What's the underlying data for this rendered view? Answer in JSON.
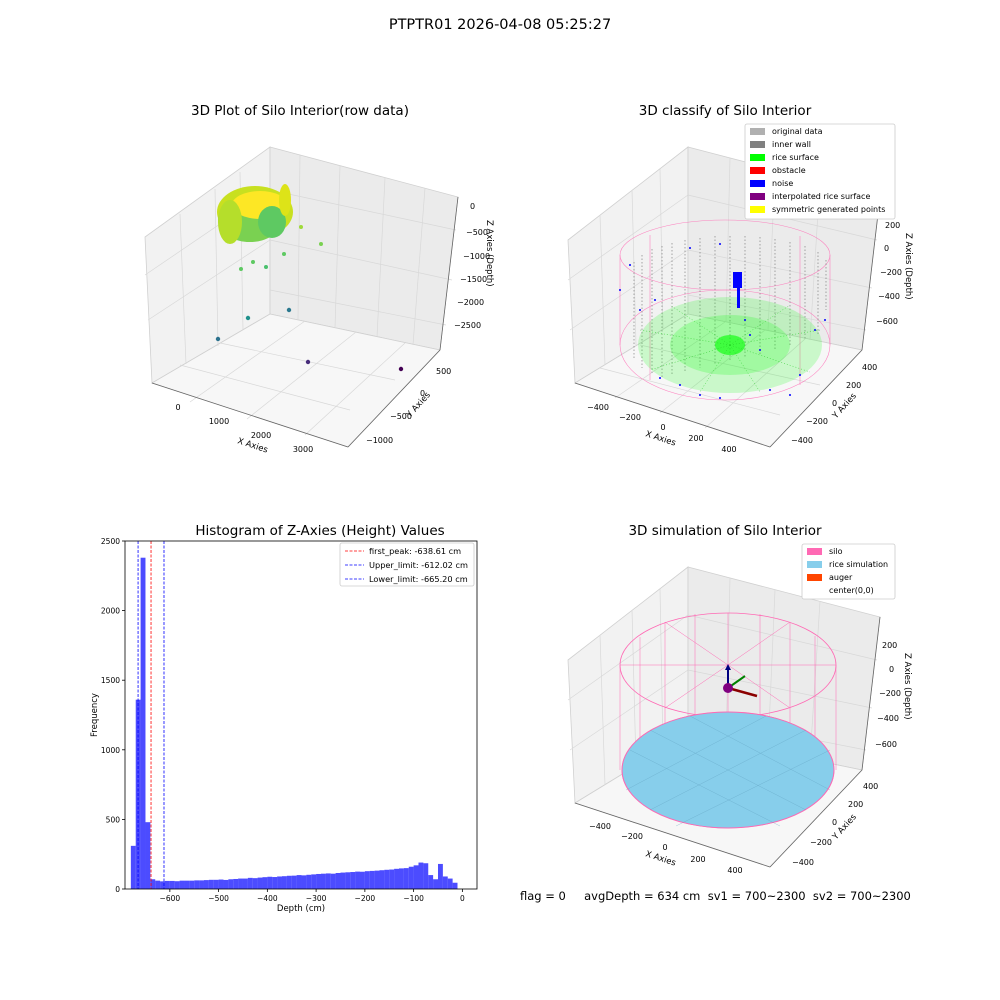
{
  "suptitle": "PTPTR01 2026-04-08 05:25:27",
  "status_text": "flag = 0     avgDepth = 634 cm  sv1 = 700~2300  sv2 = 700~2300",
  "plots": {
    "raw": {
      "title": "3D Plot of Silo Interior(row data)",
      "xlabel": "X Axies",
      "ylabel": "Y Axies",
      "zlabel": "Z Axies (Depth)",
      "xticks": [
        "0",
        "1000",
        "2000",
        "3000"
      ],
      "yticks": [
        "500",
        "0",
        "−500",
        "−1000"
      ],
      "zticks": [
        "0",
        "−500",
        "−1000",
        "−1500",
        "−2000",
        "−2500"
      ]
    },
    "classify": {
      "title": "3D classify of Silo Interior",
      "xlabel": "X Axies",
      "ylabel": "Y Axies",
      "zlabel": "Z Axies (Depth)",
      "xticks": [
        "−400",
        "−200",
        "0",
        "200",
        "400"
      ],
      "yticks": [
        "400",
        "200",
        "0",
        "−200",
        "−400"
      ],
      "zticks": [
        "200",
        "0",
        "−200",
        "−400",
        "−600"
      ],
      "legend": [
        {
          "label": "original data",
          "color": "#b0b0b0"
        },
        {
          "label": "inner wall",
          "color": "#808080"
        },
        {
          "label": "rice surface",
          "color": "#00ff00"
        },
        {
          "label": "obstacle",
          "color": "#ff0000"
        },
        {
          "label": "noise",
          "color": "#0000ff"
        },
        {
          "label": "interpolated rice surface",
          "color": "#800080"
        },
        {
          "label": "symmetric generated points",
          "color": "#ffff00"
        }
      ]
    },
    "simulation": {
      "title": "3D simulation of Silo Interior",
      "xlabel": "X Axies",
      "ylabel": "Y Axies",
      "zlabel": "Z Axies (Depth)",
      "xticks": [
        "−400",
        "−200",
        "0",
        "200",
        "400"
      ],
      "yticks": [
        "400",
        "200",
        "0",
        "−200",
        "−400"
      ],
      "zticks": [
        "200",
        "0",
        "−200",
        "−400",
        "−600"
      ],
      "legend": [
        {
          "label": "silo",
          "color": "#ff69b4"
        },
        {
          "label": "rice simulation",
          "color": "#87ceeb"
        },
        {
          "label": "auger",
          "color": "#ff4500"
        },
        {
          "label": "center(0,0)",
          "color": "#ffffff"
        }
      ]
    }
  },
  "chart_data": [
    {
      "type": "bar",
      "title": "Histogram of Z-Axies (Height) Values",
      "xlabel": "Depth (cm)",
      "ylabel": "Frequency",
      "xlim": [
        -692,
        30
      ],
      "ylim": [
        0,
        2500
      ],
      "xticks": [
        -600,
        -500,
        -400,
        -300,
        -200,
        -100,
        0
      ],
      "xtick_labels": [
        "−600",
        "−500",
        "−400",
        "−300",
        "−200",
        "−100",
        "0"
      ],
      "yticks": [
        0,
        500,
        1000,
        1500,
        2000,
        2500
      ],
      "bar_color": "#0000ff",
      "bins": {
        "x_start": [
          -680,
          -670,
          -660,
          -650,
          -640,
          -630,
          -620,
          -610,
          -600,
          -590,
          -580,
          -570,
          -560,
          -550,
          -540,
          -530,
          -520,
          -510,
          -500,
          -490,
          -480,
          -470,
          -460,
          -450,
          -440,
          -430,
          -420,
          -410,
          -400,
          -390,
          -380,
          -370,
          -360,
          -350,
          -340,
          -330,
          -320,
          -310,
          -300,
          -290,
          -280,
          -270,
          -260,
          -250,
          -240,
          -230,
          -220,
          -210,
          -200,
          -190,
          -180,
          -170,
          -160,
          -150,
          -140,
          -130,
          -120,
          -110,
          -100,
          -90,
          -80,
          -70,
          -60,
          -50,
          -40,
          -30,
          -20,
          -10
        ],
        "width": 10,
        "counts": [
          310,
          1360,
          2380,
          480,
          70,
          60,
          55,
          58,
          58,
          56,
          60,
          60,
          60,
          62,
          62,
          64,
          66,
          66,
          68,
          65,
          70,
          72,
          75,
          75,
          80,
          78,
          82,
          85,
          88,
          86,
          90,
          92,
          95,
          96,
          100,
          98,
          102,
          105,
          108,
          110,
          112,
          110,
          115,
          118,
          120,
          122,
          125,
          124,
          128,
          130,
          132,
          135,
          138,
          140,
          145,
          148,
          150,
          160,
          170,
          190,
          185,
          100,
          70,
          180,
          90,
          75,
          45,
          0
        ]
      },
      "vlines": [
        {
          "label": "first_peak: -638.61 cm",
          "x": -638.61,
          "color": "#ff0000"
        },
        {
          "label": "Upper_limit: -612.02 cm",
          "x": -612.02,
          "color": "#0000ff"
        },
        {
          "label": "Lower_limit: -665.20 cm",
          "x": -665.2,
          "color": "#0000ff"
        }
      ],
      "legend_position": "upper-right"
    }
  ]
}
